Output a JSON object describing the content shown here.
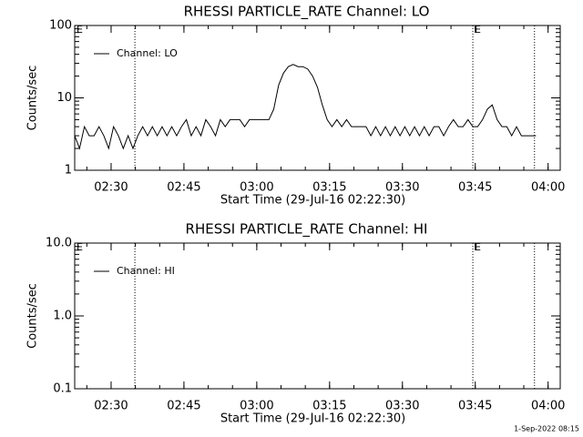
{
  "chart_data": [
    {
      "type": "line",
      "title": "RHESSI PARTICLE_RATE Channel: LO",
      "ylabel": "Counts/sec",
      "xlabel": "Start Time (29-Jul-16 02:22:30)",
      "xlim": [
        0,
        100
      ],
      "ylim": [
        1,
        100
      ],
      "log_y": true,
      "xticks": [
        {
          "value": 7.5,
          "label": "02:30"
        },
        {
          "value": 22.5,
          "label": "02:45"
        },
        {
          "value": 37.5,
          "label": "03:00"
        },
        {
          "value": 52.5,
          "label": "03:15"
        },
        {
          "value": 67.5,
          "label": "03:30"
        },
        {
          "value": 82.5,
          "label": "03:45"
        },
        {
          "value": 97.5,
          "label": "04:00"
        }
      ],
      "yticks": [
        1,
        10,
        100
      ],
      "vlines": [
        12.4,
        82,
        94.7
      ],
      "annotations": [
        {
          "text": "E",
          "x": 0
        },
        {
          "text": "E",
          "x": 82
        }
      ],
      "x": [
        0,
        1,
        2,
        3,
        4,
        5,
        6,
        7,
        8,
        9,
        10,
        11,
        12,
        13,
        14,
        15,
        16,
        17,
        18,
        19,
        20,
        21,
        22,
        23,
        24,
        25,
        26,
        27,
        28,
        29,
        30,
        31,
        32,
        33,
        34,
        35,
        36,
        37,
        38,
        39,
        40,
        41,
        42,
        43,
        44,
        45,
        46,
        47,
        48,
        49,
        50,
        51,
        52,
        53,
        54,
        55,
        56,
        57,
        58,
        59,
        60,
        61,
        62,
        63,
        64,
        65,
        66,
        67,
        68,
        69,
        70,
        71,
        72,
        73,
        74,
        75,
        76,
        77,
        78,
        79,
        80,
        81,
        82,
        83,
        84,
        85,
        86,
        87,
        88,
        89,
        90,
        91,
        92,
        93,
        94,
        95
      ],
      "series": [
        {
          "name": "Channel: LO",
          "color": "#000000",
          "values": [
            3,
            2,
            4,
            3,
            3,
            4,
            3,
            2,
            4,
            3,
            2,
            3,
            2,
            3,
            4,
            3,
            4,
            3,
            4,
            3,
            4,
            3,
            4,
            5,
            3,
            4,
            3,
            5,
            4,
            3,
            5,
            4,
            5,
            5,
            5,
            4,
            5,
            5,
            5,
            5,
            5,
            7,
            15,
            22,
            27,
            29,
            27,
            27,
            25,
            20,
            14,
            8,
            5,
            4,
            5,
            4,
            5,
            4,
            4,
            4,
            4,
            3,
            4,
            3,
            4,
            3,
            4,
            3,
            4,
            3,
            4,
            3,
            4,
            3,
            4,
            4,
            3,
            4,
            5,
            4,
            4,
            5,
            4,
            4,
            5,
            7,
            8,
            5,
            4,
            4,
            3,
            4,
            3,
            3,
            3,
            3
          ]
        }
      ]
    },
    {
      "type": "line",
      "title": "RHESSI PARTICLE_RATE Channel: HI",
      "ylabel": "Counts/sec",
      "xlabel": "Start Time (29-Jul-16 02:22:30)",
      "xlim": [
        0,
        100
      ],
      "ylim": [
        0.1,
        10
      ],
      "log_y": true,
      "xticks": [
        {
          "value": 7.5,
          "label": "02:30"
        },
        {
          "value": 22.5,
          "label": "02:45"
        },
        {
          "value": 37.5,
          "label": "03:00"
        },
        {
          "value": 52.5,
          "label": "03:15"
        },
        {
          "value": 67.5,
          "label": "03:30"
        },
        {
          "value": 82.5,
          "label": "03:45"
        },
        {
          "value": 97.5,
          "label": "04:00"
        }
      ],
      "yticks": [
        0.1,
        {
          "value": 1,
          "label": "1.0"
        },
        {
          "value": 10,
          "label": "10.0"
        }
      ],
      "vlines": [
        12.4,
        82,
        94.7
      ],
      "annotations": [
        {
          "text": "E",
          "x": 0
        },
        {
          "text": "E",
          "x": 82
        }
      ],
      "x": [],
      "series": [
        {
          "name": "Channel: HI",
          "color": "#000000",
          "values": []
        }
      ]
    }
  ],
  "footer": "1-Sep-2022 08:15"
}
